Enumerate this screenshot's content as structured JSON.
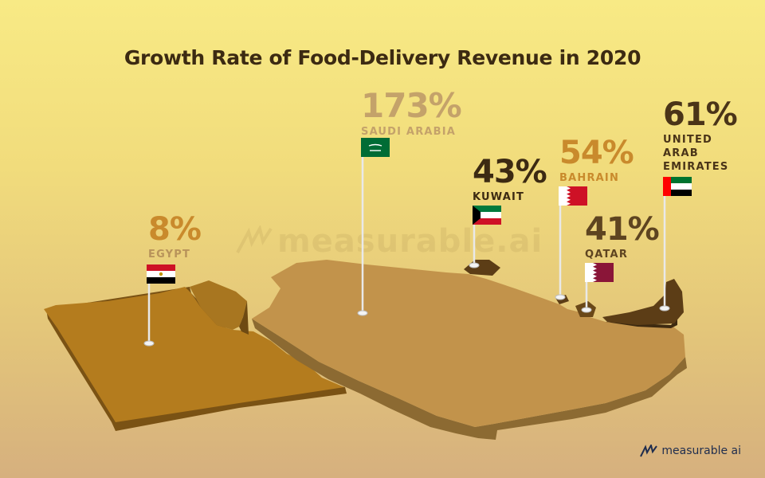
{
  "title": "Growth Rate of Food-Delivery Revenue in 2020",
  "watermark": "measurable.ai",
  "brand": {
    "name": "measurable ai",
    "icon": "measurable-logo-icon"
  },
  "colors": {
    "background_top": "#f8ea85",
    "background_bottom": "#d6b07e",
    "egypt_land": "#b47c1e",
    "saudi_land": "#c2934b",
    "uae_land": "#5c3d16",
    "dark_label": "#3c2a12",
    "tan_label": "#b8935a",
    "orange_label": "#c98a2c"
  },
  "chart_data": {
    "type": "table",
    "title": "Growth Rate of Food-Delivery Revenue in 2020",
    "unit": "%",
    "rows": [
      {
        "country": "EGYPT",
        "growth": "8%",
        "value": 8,
        "flag": "egypt-flag"
      },
      {
        "country": "SAUDI ARABIA",
        "growth": "173%",
        "value": 173,
        "flag": "saudi-arabia-flag"
      },
      {
        "country": "KUWAIT",
        "growth": "43%",
        "value": 43,
        "flag": "kuwait-flag"
      },
      {
        "country": "BAHRAIN",
        "growth": "54%",
        "value": 54,
        "flag": "bahrain-flag"
      },
      {
        "country": "QATAR",
        "growth": "41%",
        "value": 41,
        "flag": "qatar-flag"
      },
      {
        "country": "UNITED ARAB EMIRATES",
        "growth": "61%",
        "value": 61,
        "flag": "uae-flag",
        "name_lines": [
          "UNITED",
          "ARAB",
          "EMIRATES"
        ]
      }
    ]
  }
}
